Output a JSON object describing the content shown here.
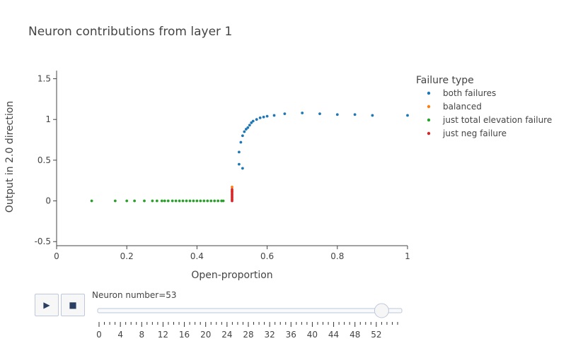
{
  "chart_data": {
    "type": "scatter",
    "title": "Neuron contributions from layer 1",
    "xlabel": "Open-proportion",
    "ylabel": "Output in 2.0 direction",
    "xlim": [
      0,
      1
    ],
    "ylim": [
      -0.55,
      1.6
    ],
    "x_ticks": [
      0,
      0.2,
      0.4,
      0.6,
      0.8,
      1
    ],
    "y_ticks": [
      -0.5,
      0,
      0.5,
      1,
      1.5
    ],
    "grid": false,
    "legend": {
      "title": "Failure type",
      "placement": "right"
    },
    "series": [
      {
        "name": "both failures",
        "color": "#1f77b4",
        "points": [
          [
            0.52,
            0.45
          ],
          [
            0.52,
            0.6
          ],
          [
            0.525,
            0.72
          ],
          [
            0.53,
            0.8
          ],
          [
            0.53,
            0.4
          ],
          [
            0.535,
            0.85
          ],
          [
            0.54,
            0.88
          ],
          [
            0.545,
            0.9
          ],
          [
            0.55,
            0.93
          ],
          [
            0.555,
            0.96
          ],
          [
            0.56,
            0.98
          ],
          [
            0.57,
            1.0
          ],
          [
            0.58,
            1.02
          ],
          [
            0.59,
            1.03
          ],
          [
            0.6,
            1.04
          ],
          [
            0.62,
            1.05
          ],
          [
            0.65,
            1.07
          ],
          [
            0.7,
            1.08
          ],
          [
            0.75,
            1.07
          ],
          [
            0.8,
            1.06
          ],
          [
            0.85,
            1.06
          ],
          [
            0.9,
            1.05
          ],
          [
            1.0,
            1.05
          ]
        ]
      },
      {
        "name": "balanced",
        "color": "#ff7f0e",
        "points": [
          [
            0.5,
            0.17
          ],
          [
            0.5,
            0.12
          ]
        ]
      },
      {
        "name": "just total elevation failure",
        "color": "#2ca02c",
        "points": [
          [
            0.1,
            0
          ],
          [
            0.167,
            0
          ],
          [
            0.2,
            0
          ],
          [
            0.222,
            0
          ],
          [
            0.25,
            0
          ],
          [
            0.273,
            0
          ],
          [
            0.286,
            0
          ],
          [
            0.3,
            0
          ],
          [
            0.308,
            0
          ],
          [
            0.318,
            0
          ],
          [
            0.33,
            0
          ],
          [
            0.34,
            0
          ],
          [
            0.35,
            0
          ],
          [
            0.36,
            0
          ],
          [
            0.37,
            0
          ],
          [
            0.38,
            0
          ],
          [
            0.39,
            0
          ],
          [
            0.4,
            0
          ],
          [
            0.41,
            0
          ],
          [
            0.42,
            0
          ],
          [
            0.43,
            0
          ],
          [
            0.44,
            0
          ],
          [
            0.45,
            0
          ],
          [
            0.46,
            0
          ],
          [
            0.47,
            0
          ],
          [
            0.475,
            0
          ]
        ]
      },
      {
        "name": "just neg failure",
        "color": "#d62728",
        "points": [
          [
            0.5,
            0
          ],
          [
            0.5,
            0.02
          ],
          [
            0.5,
            0.04
          ],
          [
            0.5,
            0.06
          ],
          [
            0.5,
            0.08
          ],
          [
            0.5,
            0.1
          ],
          [
            0.5,
            0.12
          ],
          [
            0.5,
            0.14
          ]
        ]
      }
    ]
  },
  "controls": {
    "play_icon": "▶",
    "stop_icon": "■",
    "slider_label": "Neuron number=53",
    "slider_value": 53,
    "slider_min": 0,
    "slider_max": 56,
    "slider_tick_labels": [
      "0",
      "4",
      "8",
      "12",
      "16",
      "20",
      "24",
      "28",
      "32",
      "36",
      "40",
      "44",
      "48",
      "52"
    ]
  }
}
